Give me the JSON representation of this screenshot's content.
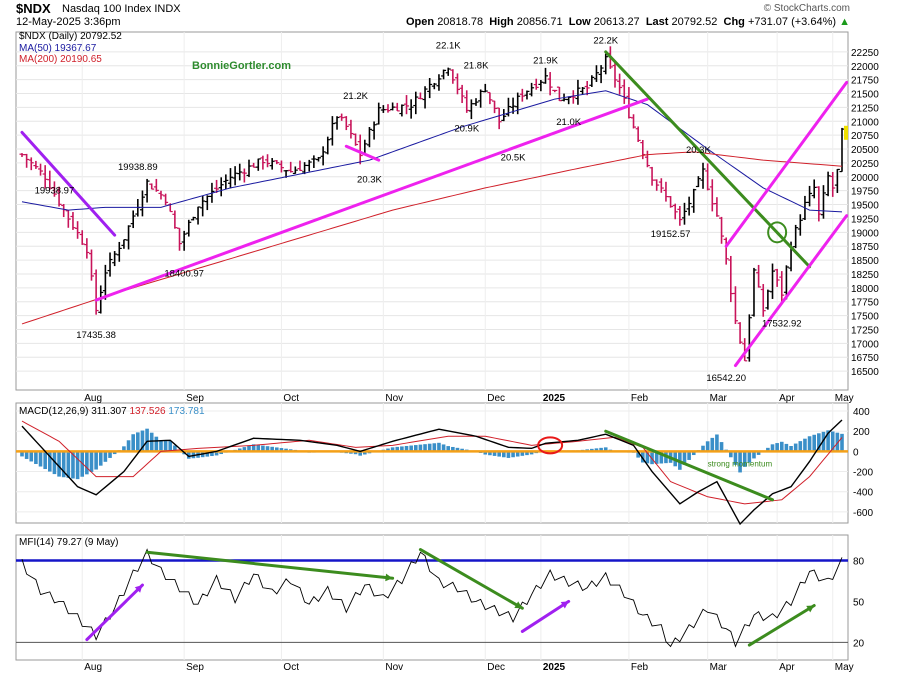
{
  "header": {
    "symbol": "$NDX",
    "name": "Nasdaq 100 Index",
    "exchange": "INDX",
    "date": "12-May-2025 3:36pm",
    "brand": "© StockCharts.com",
    "open_label": "Open",
    "open": "20818.78",
    "high_label": "High",
    "high": "20856.71",
    "low_label": "Low",
    "low": "20613.27",
    "last_label": "Last",
    "last": "20792.52",
    "chg_label": "Chg",
    "chg": "+731.07 (+3.64%)",
    "chg_arrow": "▲"
  },
  "watermark": "BonnieGortler.com",
  "legend": {
    "price": "$NDX (Daily) 20792.52",
    "ma50": "MA(50) 19367.67",
    "ma200": "MA(200) 20190.65"
  },
  "colors": {
    "bar_up": "#000000",
    "bar_down": "#c8145a",
    "ma50": "#1a1aa0",
    "ma200": "#d0202a",
    "magenta": "#ee22ee",
    "green": "#3c8c1e",
    "purple": "#a020f0",
    "orange": "#f4a018",
    "hist": "#3a8fc8",
    "blue_line": "#1515c8",
    "red_circle": "#e81818"
  },
  "x_axis": {
    "labels": [
      "Aug",
      "Sep",
      "Oct",
      "Nov",
      "Dec",
      "2025",
      "Feb",
      "Mar",
      "Apr",
      "May"
    ],
    "bold": [
      "2025"
    ]
  },
  "chart_data": [
    {
      "type": "ohlc",
      "title": "$NDX (Daily) 20792.52",
      "ylim": [
        16250,
        22500
      ],
      "y_ticks": [
        16500,
        16750,
        17000,
        17250,
        17500,
        17750,
        18000,
        18250,
        18500,
        18750,
        19000,
        19250,
        19500,
        19750,
        20000,
        20250,
        20500,
        20750,
        21000,
        21250,
        21500,
        21750,
        22000,
        22250
      ],
      "series_keypoints": [
        {
          "x": 0,
          "close": 20400
        },
        {
          "x": 5,
          "close": 20000
        },
        {
          "x": 9,
          "close": 19400
        },
        {
          "x": 14,
          "close": 18700
        },
        {
          "x": 16,
          "close": 17600
        },
        {
          "x": 18,
          "close": 18300
        },
        {
          "x": 22,
          "close": 18900
        },
        {
          "x": 27,
          "close": 19900
        },
        {
          "x": 31,
          "close": 19600
        },
        {
          "x": 34,
          "close": 18800
        },
        {
          "x": 38,
          "close": 19500
        },
        {
          "x": 45,
          "close": 20000
        },
        {
          "x": 52,
          "close": 20300
        },
        {
          "x": 58,
          "close": 20100
        },
        {
          "x": 64,
          "close": 20300
        },
        {
          "x": 68,
          "close": 21100
        },
        {
          "x": 70,
          "close": 20900
        },
        {
          "x": 73,
          "close": 20400
        },
        {
          "x": 77,
          "close": 21200
        },
        {
          "x": 84,
          "close": 21300
        },
        {
          "x": 92,
          "close": 22000
        },
        {
          "x": 96,
          "close": 21200
        },
        {
          "x": 100,
          "close": 21600
        },
        {
          "x": 103,
          "close": 21000
        },
        {
          "x": 108,
          "close": 21500
        },
        {
          "x": 113,
          "close": 21800
        },
        {
          "x": 116,
          "close": 21400
        },
        {
          "x": 122,
          "close": 21600
        },
        {
          "x": 126,
          "close": 22100
        },
        {
          "x": 129,
          "close": 21600
        },
        {
          "x": 132,
          "close": 20900
        },
        {
          "x": 136,
          "close": 20000
        },
        {
          "x": 140,
          "close": 19500
        },
        {
          "x": 142,
          "close": 19200
        },
        {
          "x": 145,
          "close": 19700
        },
        {
          "x": 147,
          "close": 20100
        },
        {
          "x": 150,
          "close": 19300
        },
        {
          "x": 152,
          "close": 18500
        },
        {
          "x": 154,
          "close": 17400
        },
        {
          "x": 156,
          "close": 16700
        },
        {
          "x": 158,
          "close": 18300
        },
        {
          "x": 160,
          "close": 17600
        },
        {
          "x": 162,
          "close": 18300
        },
        {
          "x": 164,
          "close": 17900
        },
        {
          "x": 166,
          "close": 18800
        },
        {
          "x": 169,
          "close": 19500
        },
        {
          "x": 171,
          "close": 19800
        },
        {
          "x": 172,
          "close": 19300
        },
        {
          "x": 174,
          "close": 20000
        },
        {
          "x": 175,
          "close": 19800
        },
        {
          "x": 176,
          "close": 20100
        },
        {
          "x": 177,
          "close": 20792.52
        }
      ],
      "price_labels": [
        {
          "text": "19938.97",
          "x": 7,
          "y": 19700
        },
        {
          "text": "17435.38",
          "x": 16,
          "y": 17100
        },
        {
          "text": "19938.89",
          "x": 25,
          "y": 20120
        },
        {
          "text": "18400.97",
          "x": 35,
          "y": 18200
        },
        {
          "text": "21.2K",
          "x": 72,
          "y": 21400
        },
        {
          "text": "20.3K",
          "x": 75,
          "y": 19900
        },
        {
          "text": "22.1K",
          "x": 92,
          "y": 22310
        },
        {
          "text": "21.8K",
          "x": 98,
          "y": 21950
        },
        {
          "text": "20.9K",
          "x": 96,
          "y": 20820
        },
        {
          "text": "21.9K",
          "x": 113,
          "y": 22040
        },
        {
          "text": "20.5K",
          "x": 106,
          "y": 20290
        },
        {
          "text": "21.0K",
          "x": 118,
          "y": 20930
        },
        {
          "text": "22.2K",
          "x": 126,
          "y": 22400
        },
        {
          "text": "20.3K",
          "x": 146,
          "y": 20430
        },
        {
          "text": "19152.57",
          "x": 140,
          "y": 18920
        },
        {
          "text": "17532.92",
          "x": 164,
          "y": 17300
        },
        {
          "text": "16542.20",
          "x": 152,
          "y": 16320
        }
      ],
      "ma50_keypoints": [
        {
          "x": 0,
          "y": 19550
        },
        {
          "x": 10,
          "y": 19400
        },
        {
          "x": 18,
          "y": 19450
        },
        {
          "x": 30,
          "y": 19450
        },
        {
          "x": 45,
          "y": 19800
        },
        {
          "x": 60,
          "y": 20050
        },
        {
          "x": 75,
          "y": 20300
        },
        {
          "x": 95,
          "y": 20900
        },
        {
          "x": 115,
          "y": 21400
        },
        {
          "x": 126,
          "y": 21550
        },
        {
          "x": 135,
          "y": 21300
        },
        {
          "x": 148,
          "y": 20500
        },
        {
          "x": 160,
          "y": 19800
        },
        {
          "x": 170,
          "y": 19400
        },
        {
          "x": 177,
          "y": 19367.67
        }
      ],
      "ma200_keypoints": [
        {
          "x": 0,
          "y": 17350
        },
        {
          "x": 20,
          "y": 17900
        },
        {
          "x": 40,
          "y": 18400
        },
        {
          "x": 60,
          "y": 18900
        },
        {
          "x": 80,
          "y": 19400
        },
        {
          "x": 100,
          "y": 19800
        },
        {
          "x": 120,
          "y": 20150
        },
        {
          "x": 135,
          "y": 20400
        },
        {
          "x": 145,
          "y": 20450
        },
        {
          "x": 160,
          "y": 20300
        },
        {
          "x": 177,
          "y": 20190.65
        }
      ],
      "trendlines": [
        {
          "color": "magenta",
          "from": [
            16,
            17780
          ],
          "to": [
            135,
            21400
          ]
        },
        {
          "color": "magenta",
          "from": [
            70,
            20550
          ],
          "to": [
            77,
            20300
          ]
        },
        {
          "color": "purple",
          "from": [
            0,
            20800
          ],
          "to": [
            20,
            18950
          ]
        },
        {
          "color": "green",
          "from": [
            126,
            22250
          ],
          "to": [
            170,
            18380
          ]
        },
        {
          "color": "magenta",
          "from": [
            152,
            18750
          ],
          "to": [
            178,
            21700
          ]
        },
        {
          "color": "magenta",
          "from": [
            154,
            16600
          ],
          "to": [
            178,
            19300
          ]
        }
      ],
      "circles": [
        {
          "color": "green",
          "x": 163,
          "y": 19000
        }
      ]
    },
    {
      "type": "line",
      "title": "MACD(12,26,9)",
      "legend": {
        "name": "MACD(12,26,9)",
        "macd": "311.307",
        "signal": "137.526",
        "hist": "173.781"
      },
      "ylim": [
        -700,
        430
      ],
      "y_ticks": [
        400,
        200,
        0,
        -200,
        -400,
        -600
      ],
      "macd_keypoints": [
        {
          "x": 0,
          "y": 250
        },
        {
          "x": 6,
          "y": -50
        },
        {
          "x": 12,
          "y": -350
        },
        {
          "x": 16,
          "y": -430
        },
        {
          "x": 22,
          "y": -200
        },
        {
          "x": 27,
          "y": 100
        },
        {
          "x": 32,
          "y": 110
        },
        {
          "x": 36,
          "y": -50
        },
        {
          "x": 42,
          "y": 0
        },
        {
          "x": 50,
          "y": 130
        },
        {
          "x": 60,
          "y": 110
        },
        {
          "x": 68,
          "y": 60
        },
        {
          "x": 73,
          "y": 0
        },
        {
          "x": 80,
          "y": 100
        },
        {
          "x": 90,
          "y": 220
        },
        {
          "x": 98,
          "y": 150
        },
        {
          "x": 105,
          "y": 40
        },
        {
          "x": 110,
          "y": 30
        },
        {
          "x": 113,
          "y": 80
        },
        {
          "x": 120,
          "y": 110
        },
        {
          "x": 126,
          "y": 170
        },
        {
          "x": 132,
          "y": 60
        },
        {
          "x": 136,
          "y": -200
        },
        {
          "x": 142,
          "y": -520
        },
        {
          "x": 146,
          "y": -400
        },
        {
          "x": 150,
          "y": -300
        },
        {
          "x": 155,
          "y": -720
        },
        {
          "x": 158,
          "y": -580
        },
        {
          "x": 162,
          "y": -420
        },
        {
          "x": 166,
          "y": -350
        },
        {
          "x": 170,
          "y": -100
        },
        {
          "x": 174,
          "y": 180
        },
        {
          "x": 177,
          "y": 311.307
        }
      ],
      "signal_keypoints": [
        {
          "x": 0,
          "y": 300
        },
        {
          "x": 8,
          "y": 100
        },
        {
          "x": 16,
          "y": -250
        },
        {
          "x": 24,
          "y": -250
        },
        {
          "x": 30,
          "y": 0
        },
        {
          "x": 38,
          "y": 30
        },
        {
          "x": 50,
          "y": 60
        },
        {
          "x": 62,
          "y": 110
        },
        {
          "x": 72,
          "y": 40
        },
        {
          "x": 80,
          "y": 60
        },
        {
          "x": 92,
          "y": 150
        },
        {
          "x": 100,
          "y": 150
        },
        {
          "x": 110,
          "y": 60
        },
        {
          "x": 120,
          "y": 100
        },
        {
          "x": 128,
          "y": 140
        },
        {
          "x": 134,
          "y": 40
        },
        {
          "x": 140,
          "y": -300
        },
        {
          "x": 148,
          "y": -450
        },
        {
          "x": 156,
          "y": -520
        },
        {
          "x": 164,
          "y": -480
        },
        {
          "x": 170,
          "y": -250
        },
        {
          "x": 177,
          "y": 137.526
        }
      ],
      "hist_last": 173.781,
      "annotation": "strong momentum",
      "trendlines": [
        {
          "color": "green",
          "from": [
            126,
            200
          ],
          "to": [
            162,
            -480
          ]
        }
      ],
      "circles": [
        {
          "color": "red_circle",
          "x": 114,
          "y": 60
        }
      ],
      "zero_line": {
        "color": "orange",
        "y": 0
      }
    },
    {
      "type": "line",
      "title": "MFI(14)",
      "legend": {
        "name": "MFI(14)",
        "value": "79.27",
        "date": "(9 May)"
      },
      "ylim": [
        10,
        95
      ],
      "y_ticks": [
        80,
        50,
        20
      ],
      "mfi_keypoints": [
        {
          "x": 0,
          "y": 78
        },
        {
          "x": 4,
          "y": 58
        },
        {
          "x": 8,
          "y": 50
        },
        {
          "x": 12,
          "y": 38
        },
        {
          "x": 16,
          "y": 25
        },
        {
          "x": 20,
          "y": 45
        },
        {
          "x": 24,
          "y": 70
        },
        {
          "x": 27,
          "y": 85
        },
        {
          "x": 30,
          "y": 72
        },
        {
          "x": 34,
          "y": 60
        },
        {
          "x": 38,
          "y": 48
        },
        {
          "x": 42,
          "y": 66
        },
        {
          "x": 46,
          "y": 52
        },
        {
          "x": 50,
          "y": 70
        },
        {
          "x": 54,
          "y": 56
        },
        {
          "x": 58,
          "y": 66
        },
        {
          "x": 62,
          "y": 48
        },
        {
          "x": 66,
          "y": 58
        },
        {
          "x": 70,
          "y": 45
        },
        {
          "x": 74,
          "y": 62
        },
        {
          "x": 78,
          "y": 52
        },
        {
          "x": 82,
          "y": 66
        },
        {
          "x": 86,
          "y": 86
        },
        {
          "x": 90,
          "y": 64
        },
        {
          "x": 94,
          "y": 60
        },
        {
          "x": 98,
          "y": 50
        },
        {
          "x": 102,
          "y": 44
        },
        {
          "x": 106,
          "y": 38
        },
        {
          "x": 110,
          "y": 55
        },
        {
          "x": 114,
          "y": 70
        },
        {
          "x": 118,
          "y": 64
        },
        {
          "x": 122,
          "y": 60
        },
        {
          "x": 126,
          "y": 68
        },
        {
          "x": 130,
          "y": 56
        },
        {
          "x": 134,
          "y": 40
        },
        {
          "x": 138,
          "y": 30
        },
        {
          "x": 140,
          "y": 17
        },
        {
          "x": 144,
          "y": 30
        },
        {
          "x": 148,
          "y": 45
        },
        {
          "x": 152,
          "y": 30
        },
        {
          "x": 154,
          "y": 20
        },
        {
          "x": 158,
          "y": 40
        },
        {
          "x": 162,
          "y": 38
        },
        {
          "x": 166,
          "y": 50
        },
        {
          "x": 170,
          "y": 72
        },
        {
          "x": 174,
          "y": 64
        },
        {
          "x": 177,
          "y": 79.27
        }
      ],
      "level_lines": [
        {
          "y": 80,
          "color": "blue_line"
        },
        {
          "y": 20,
          "color": "#555555"
        }
      ],
      "trendlines": [
        {
          "color": "purple",
          "from": [
            14,
            22
          ],
          "to": [
            26,
            62
          ]
        },
        {
          "color": "green",
          "from": [
            27,
            86
          ],
          "to": [
            80,
            67
          ]
        },
        {
          "color": "green",
          "from": [
            86,
            88
          ],
          "to": [
            108,
            45
          ]
        },
        {
          "color": "purple",
          "from": [
            108,
            28
          ],
          "to": [
            118,
            50
          ]
        },
        {
          "color": "green",
          "from": [
            157,
            18
          ],
          "to": [
            171,
            47
          ]
        }
      ]
    }
  ]
}
